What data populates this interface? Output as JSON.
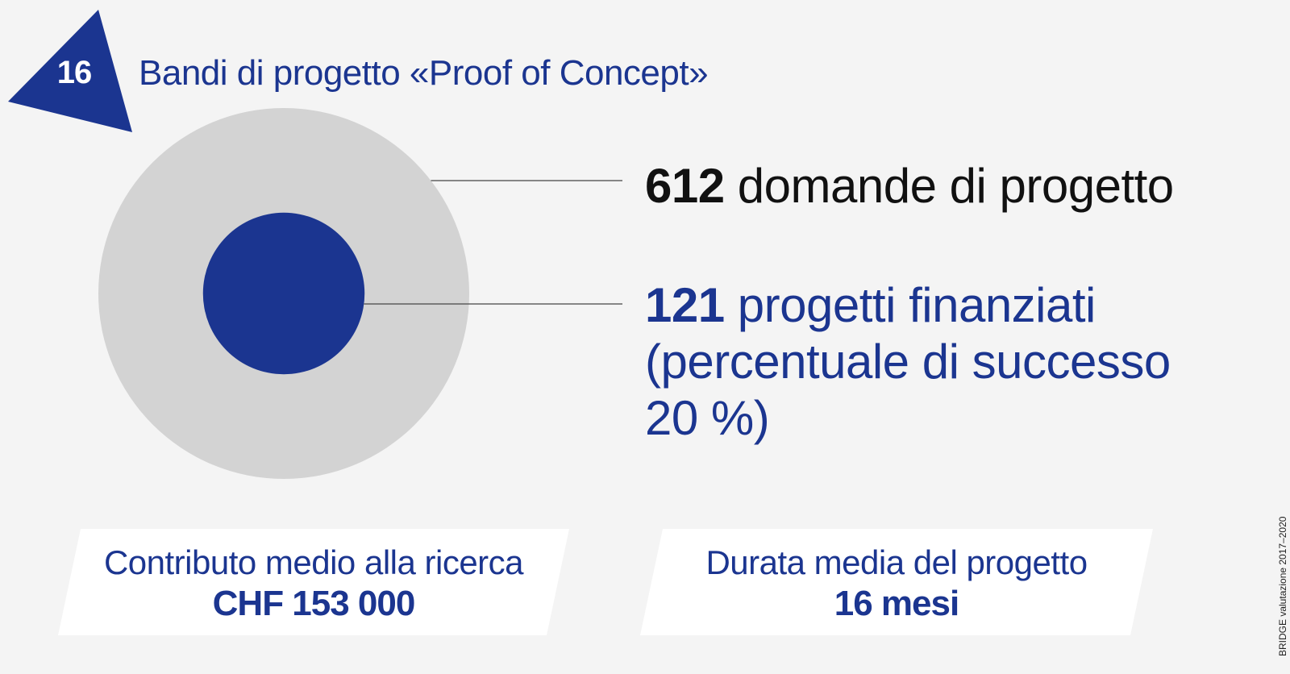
{
  "header": {
    "badge_number": "16",
    "title": "Bandi di progetto «Proof of Concept»"
  },
  "colors": {
    "accent": "#1b3590",
    "outer_circle": "#d3d3d3",
    "background": "#f4f4f4",
    "box_fill": "#ffffff",
    "dark_text": "#111111"
  },
  "chart_data": {
    "type": "nested-circles",
    "series": [
      {
        "value": 612,
        "text_bold": "612",
        "text": " domande di progetto"
      },
      {
        "value": 121,
        "text_bold": "121",
        "text": " progetti finanziati",
        "text_line2": "(percentuale di successo",
        "text_line3": "20 %)"
      }
    ],
    "success_rate_percent": 20
  },
  "boxes": [
    {
      "label": "Contributo medio alla ricerca",
      "value": "CHF 153 000"
    },
    {
      "label": "Durata media del progetto",
      "value": "16 mesi"
    }
  ],
  "source": "BRIDGE valutazione 2017–2020"
}
